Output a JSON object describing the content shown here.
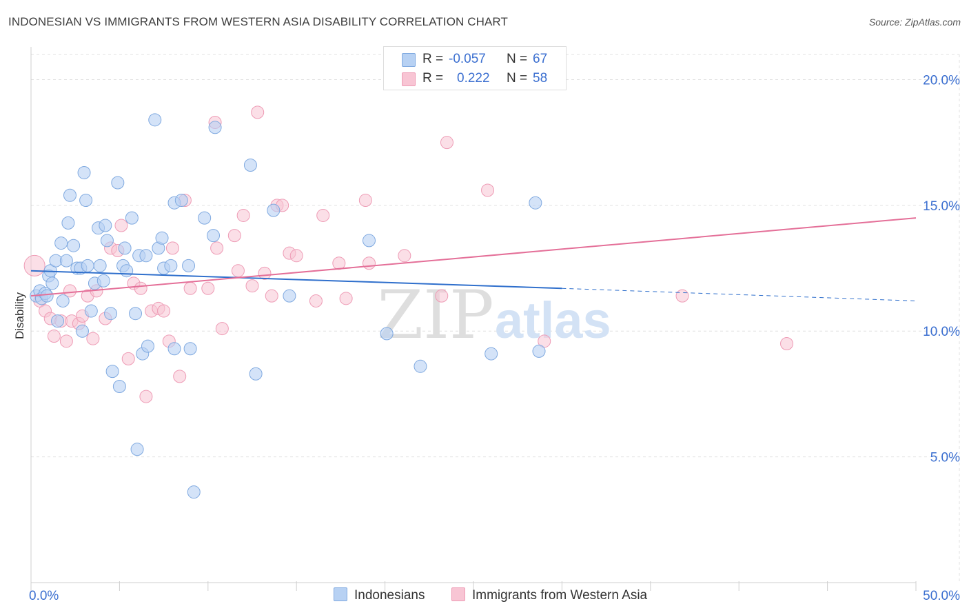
{
  "title": "INDONESIAN VS IMMIGRANTS FROM WESTERN ASIA DISABILITY CORRELATION CHART",
  "source": "Source: ZipAtlas.com",
  "watermark": {
    "zip": "ZIP",
    "atlas": "atlas"
  },
  "legend": {
    "r_label": "R =",
    "n_label": "N =",
    "series1": {
      "r": "-0.057",
      "n": "67"
    },
    "series2": {
      "r": "0.222",
      "n": "58"
    }
  },
  "colors": {
    "blue_fill": "#b7d1f3",
    "blue_stroke": "#7fa9e0",
    "blue_line": "#2f6fcc",
    "pink_fill": "#f8c5d4",
    "pink_stroke": "#ee9bb5",
    "pink_line": "#e46f98",
    "grid": "#e0e0e0",
    "tick_label": "#3b6fd0"
  },
  "chart_data": {
    "type": "scatter",
    "title": "INDONESIAN VS IMMIGRANTS FROM WESTERN ASIA DISABILITY CORRELATION CHART",
    "xlabel": "",
    "ylabel": "Disability",
    "xlim": [
      0,
      50
    ],
    "ylim": [
      0,
      21
    ],
    "x_tick_labels": [
      "0.0%",
      "50.0%"
    ],
    "y_ticks": [
      5,
      10,
      15,
      20
    ],
    "y_tick_labels": [
      "5.0%",
      "10.0%",
      "15.0%",
      "20.0%"
    ],
    "grid": true,
    "series": [
      {
        "name": "Indonesians",
        "r": -0.057,
        "n": 67,
        "trend": {
          "x_start": 0,
          "y_start": 12.4,
          "x_solid_end": 30,
          "y_solid_end": 11.7,
          "x_end": 50,
          "y_end": 11.2
        },
        "points": [
          [
            0.3,
            11.4
          ],
          [
            0.5,
            11.6
          ],
          [
            0.6,
            11.3
          ],
          [
            0.8,
            11.5
          ],
          [
            0.9,
            11.4
          ],
          [
            1.0,
            12.2
          ],
          [
            1.1,
            12.4
          ],
          [
            1.2,
            11.9
          ],
          [
            1.4,
            12.8
          ],
          [
            1.5,
            10.4
          ],
          [
            1.7,
            13.5
          ],
          [
            1.8,
            11.2
          ],
          [
            2.0,
            12.8
          ],
          [
            2.1,
            14.3
          ],
          [
            2.2,
            15.4
          ],
          [
            2.4,
            13.4
          ],
          [
            2.6,
            12.5
          ],
          [
            2.8,
            12.5
          ],
          [
            2.9,
            10.0
          ],
          [
            3.0,
            16.3
          ],
          [
            3.1,
            15.2
          ],
          [
            3.2,
            12.6
          ],
          [
            3.4,
            10.8
          ],
          [
            3.6,
            11.9
          ],
          [
            3.8,
            14.1
          ],
          [
            3.9,
            12.6
          ],
          [
            4.1,
            12.0
          ],
          [
            4.2,
            14.2
          ],
          [
            4.3,
            13.6
          ],
          [
            4.5,
            10.7
          ],
          [
            4.6,
            8.4
          ],
          [
            4.9,
            15.9
          ],
          [
            5.0,
            7.8
          ],
          [
            5.2,
            12.6
          ],
          [
            5.3,
            13.3
          ],
          [
            5.4,
            12.4
          ],
          [
            5.7,
            14.5
          ],
          [
            5.9,
            10.7
          ],
          [
            6.0,
            5.3
          ],
          [
            6.1,
            13.0
          ],
          [
            6.3,
            9.1
          ],
          [
            6.5,
            13.0
          ],
          [
            6.6,
            9.4
          ],
          [
            7.0,
            18.4
          ],
          [
            7.2,
            13.3
          ],
          [
            7.4,
            13.7
          ],
          [
            7.5,
            12.5
          ],
          [
            7.9,
            12.6
          ],
          [
            8.1,
            15.1
          ],
          [
            8.1,
            9.3
          ],
          [
            8.5,
            15.2
          ],
          [
            8.9,
            12.6
          ],
          [
            9.0,
            9.3
          ],
          [
            9.2,
            3.6
          ],
          [
            9.8,
            14.5
          ],
          [
            10.3,
            13.8
          ],
          [
            10.4,
            18.1
          ],
          [
            12.4,
            16.6
          ],
          [
            12.7,
            8.3
          ],
          [
            13.7,
            14.8
          ],
          [
            14.6,
            11.4
          ],
          [
            19.1,
            13.6
          ],
          [
            20.1,
            9.9
          ],
          [
            22.0,
            8.6
          ],
          [
            26.0,
            9.1
          ],
          [
            28.5,
            15.1
          ],
          [
            28.7,
            9.2
          ]
        ]
      },
      {
        "name": "Immigrants from Western Asia",
        "r": 0.222,
        "n": 58,
        "trend": {
          "x_start": 0,
          "y_start": 11.4,
          "x_end": 50,
          "y_end": 14.5
        },
        "points": [
          [
            0.2,
            12.6
          ],
          [
            0.5,
            11.2
          ],
          [
            0.8,
            10.8
          ],
          [
            1.1,
            10.5
          ],
          [
            1.3,
            9.8
          ],
          [
            1.7,
            10.4
          ],
          [
            2.0,
            9.6
          ],
          [
            2.2,
            11.6
          ],
          [
            2.3,
            10.4
          ],
          [
            2.7,
            10.3
          ],
          [
            2.9,
            10.6
          ],
          [
            3.2,
            11.4
          ],
          [
            3.5,
            9.7
          ],
          [
            3.7,
            11.6
          ],
          [
            4.2,
            10.5
          ],
          [
            4.5,
            13.3
          ],
          [
            4.9,
            13.2
          ],
          [
            5.1,
            14.2
          ],
          [
            5.5,
            8.9
          ],
          [
            5.8,
            11.9
          ],
          [
            6.2,
            11.7
          ],
          [
            6.5,
            7.4
          ],
          [
            6.8,
            10.8
          ],
          [
            7.2,
            10.9
          ],
          [
            7.5,
            10.8
          ],
          [
            7.8,
            9.6
          ],
          [
            8.0,
            13.3
          ],
          [
            8.4,
            8.2
          ],
          [
            8.7,
            15.2
          ],
          [
            9.0,
            11.7
          ],
          [
            10.0,
            11.7
          ],
          [
            10.4,
            18.3
          ],
          [
            10.5,
            13.3
          ],
          [
            10.8,
            10.1
          ],
          [
            11.5,
            13.8
          ],
          [
            11.7,
            12.4
          ],
          [
            12.0,
            14.6
          ],
          [
            12.5,
            11.8
          ],
          [
            12.8,
            18.7
          ],
          [
            13.2,
            12.3
          ],
          [
            13.6,
            11.4
          ],
          [
            13.9,
            15.0
          ],
          [
            14.2,
            15.0
          ],
          [
            14.6,
            13.1
          ],
          [
            15.0,
            13.0
          ],
          [
            16.1,
            11.2
          ],
          [
            16.5,
            14.6
          ],
          [
            17.4,
            12.7
          ],
          [
            17.8,
            11.3
          ],
          [
            18.9,
            15.2
          ],
          [
            19.1,
            12.7
          ],
          [
            21.1,
            13.0
          ],
          [
            23.2,
            11.4
          ],
          [
            23.5,
            17.5
          ],
          [
            25.8,
            15.6
          ],
          [
            29.0,
            9.6
          ],
          [
            36.8,
            11.4
          ],
          [
            42.7,
            9.5
          ]
        ]
      }
    ]
  }
}
